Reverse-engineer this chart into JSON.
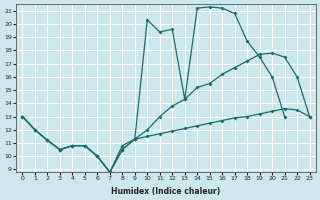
{
  "xlabel": "Humidex (Indice chaleur)",
  "bg_color": "#cce8ec",
  "grid_color": "#ffffff",
  "line_color": "#1a6b6b",
  "xlim": [
    -0.5,
    23.5
  ],
  "ylim": [
    8.8,
    21.5
  ],
  "yticks": [
    9,
    10,
    11,
    12,
    13,
    14,
    15,
    16,
    17,
    18,
    19,
    20,
    21
  ],
  "xticks": [
    0,
    1,
    2,
    3,
    4,
    5,
    6,
    7,
    8,
    9,
    10,
    11,
    12,
    13,
    14,
    15,
    16,
    17,
    18,
    19,
    20,
    21,
    22,
    23
  ],
  "s1_x": [
    0,
    1,
    2,
    3,
    4,
    5,
    6,
    7,
    8,
    9,
    10,
    11,
    12,
    13,
    14,
    15,
    16,
    17,
    18,
    19,
    20,
    21
  ],
  "s1_y": [
    13,
    12,
    11.2,
    10.5,
    10.8,
    10.8,
    10.0,
    8.8,
    10.8,
    11.3,
    20.3,
    19.4,
    19.6,
    14.3,
    21.2,
    21.3,
    21.2,
    20.8,
    18.7,
    17.5,
    16.0,
    13.0
  ],
  "s2_x": [
    0,
    1,
    2,
    3,
    4,
    5,
    6,
    7,
    8,
    9,
    10,
    11,
    12,
    13,
    14,
    15,
    16,
    17,
    18,
    19,
    20,
    21,
    22,
    23
  ],
  "s2_y": [
    13,
    12,
    11.2,
    10.5,
    10.8,
    10.8,
    10.0,
    8.8,
    10.5,
    11.3,
    12.0,
    13.0,
    13.8,
    14.3,
    15.2,
    15.5,
    16.2,
    16.7,
    17.2,
    17.7,
    17.8,
    17.5,
    16.0,
    13.0
  ],
  "s3_x": [
    0,
    1,
    2,
    3,
    4,
    5,
    6,
    7,
    8,
    9,
    10,
    11,
    12,
    13,
    14,
    15,
    16,
    17,
    18,
    19,
    20,
    21,
    22,
    23
  ],
  "s3_y": [
    13,
    12,
    11.2,
    10.5,
    10.8,
    10.8,
    10.0,
    8.8,
    10.5,
    11.3,
    11.5,
    11.7,
    11.9,
    12.1,
    12.3,
    12.5,
    12.7,
    12.9,
    13.0,
    13.2,
    13.4,
    13.6,
    13.5,
    13.0
  ]
}
